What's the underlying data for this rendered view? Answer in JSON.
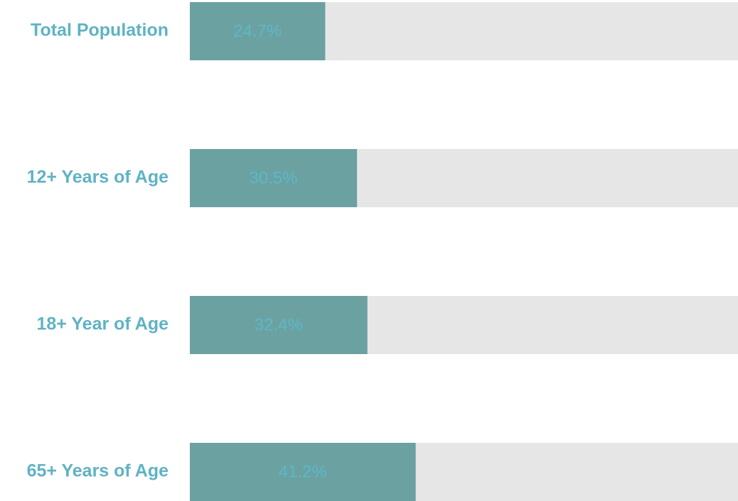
{
  "chart_data": {
    "type": "bar",
    "orientation": "horizontal",
    "categories": [
      "Total Population",
      "12+ Years of Age",
      "18+ Year of Age",
      "65+ Years of Age"
    ],
    "values": [
      24.7,
      30.5,
      32.4,
      41.2
    ],
    "value_labels": [
      "24.7%",
      "30.5%",
      "32.4%",
      "41.2%"
    ],
    "color": "#6ca1a2",
    "xlim": [
      0,
      100
    ]
  }
}
